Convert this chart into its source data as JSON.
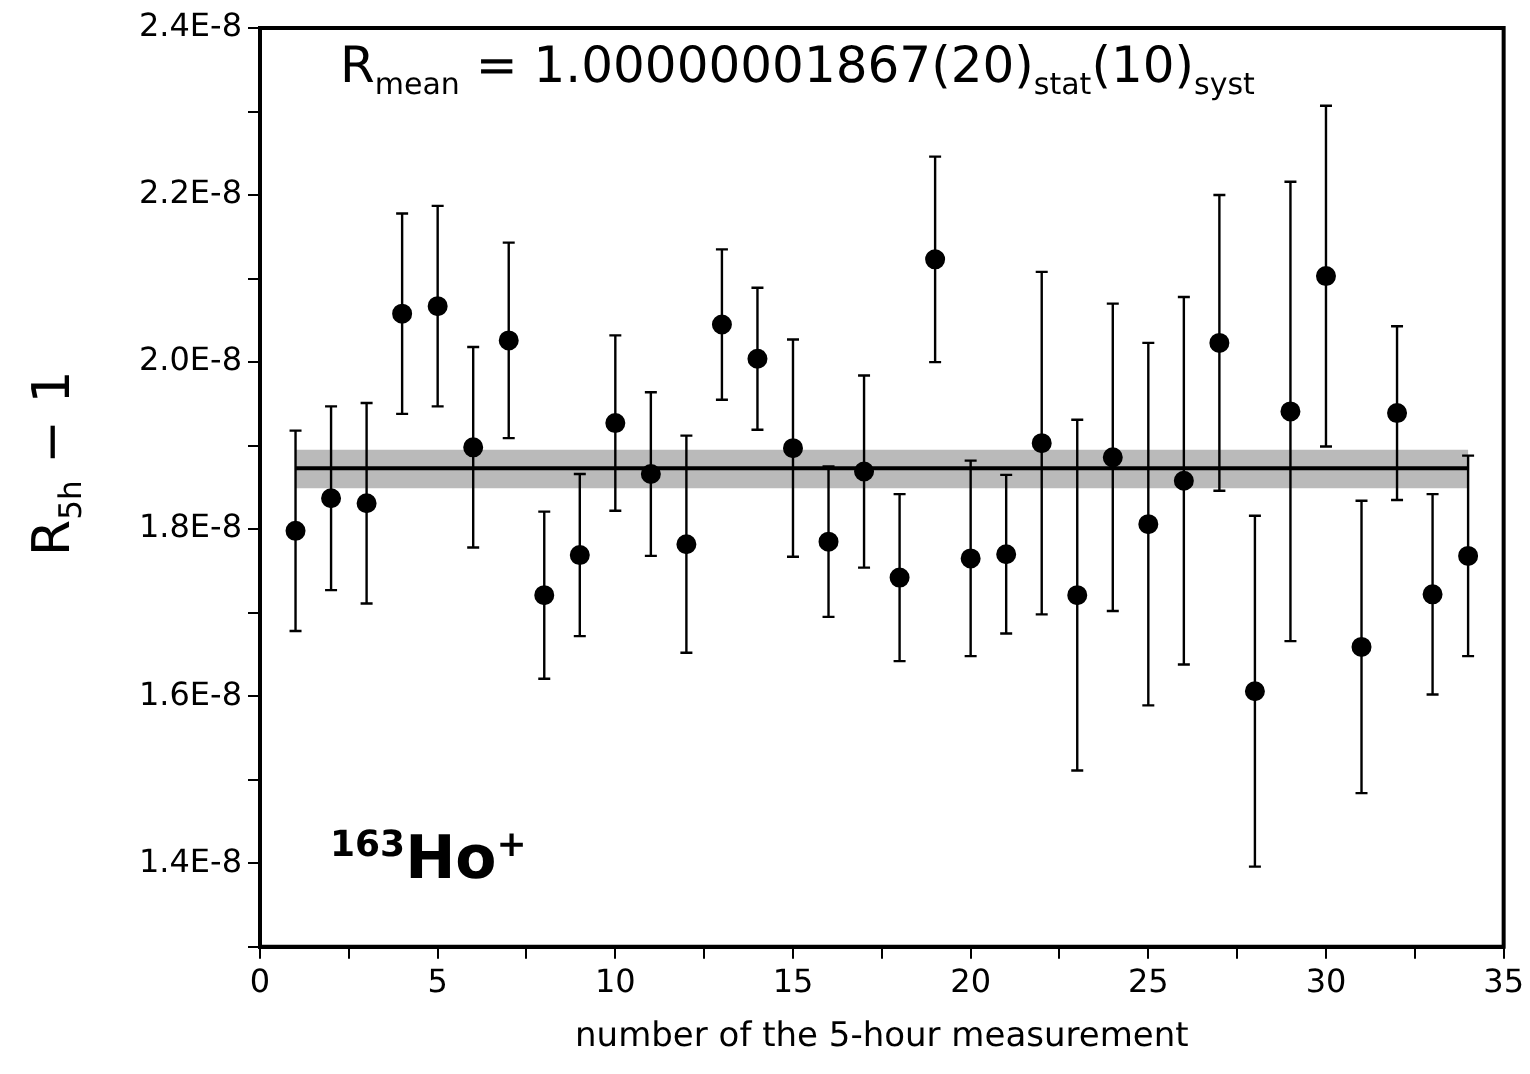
{
  "chart_data": {
    "type": "scatter",
    "xlabel": "number of the 5-hour measurement",
    "ylabel": "R$_{5h}$ − 1",
    "annotations": [
      "R$_{mean}$ = 1.00000001867(20)$_{stat}$(10)$_{syst}$",
      "$^{163}$Ho$^{+}$"
    ],
    "xlim": [
      0,
      35
    ],
    "xticks": [
      0,
      {
        "value": 2.5,
        "label": null
      },
      5,
      {
        "value": 7.5,
        "label": null
      },
      10,
      {
        "value": 12.5,
        "label": null
      },
      15,
      {
        "value": 17.5,
        "label": null
      },
      20,
      {
        "value": 22.5,
        "label": null
      },
      25,
      {
        "value": 27.5,
        "label": null
      },
      30,
      {
        "value": 32.5,
        "label": null
      },
      35
    ],
    "ylim": [
      1.3e-08,
      2.4e-08
    ],
    "yticks": [
      {
        "value": 1.3e-08,
        "label": null
      },
      {
        "value": 1.4e-08,
        "label": "1.4E-8"
      },
      {
        "value": 1.5e-08,
        "label": null
      },
      {
        "value": 1.6e-08,
        "label": "1.6E-8"
      },
      {
        "value": 1.7e-08,
        "label": null
      },
      {
        "value": 1.8e-08,
        "label": "1.8E-8"
      },
      {
        "value": 1.9e-08,
        "label": null
      },
      {
        "value": 2e-08,
        "label": "2.0E-8"
      },
      {
        "value": 2.1e-08,
        "label": null
      },
      {
        "value": 2.2e-08,
        "label": "2.2E-8"
      },
      {
        "value": 2.3e-08,
        "label": null
      },
      {
        "value": 2.4e-08,
        "label": "2.4E-8"
      }
    ],
    "grid": false,
    "legend": false,
    "series": [
      {
        "marker": "circle",
        "color": "#000000",
        "x": [
          1,
          2,
          3,
          4,
          5,
          6,
          7,
          8,
          9,
          10,
          11,
          12,
          13,
          14,
          15,
          16,
          17,
          18,
          19,
          20,
          21,
          22,
          23,
          24,
          25,
          26,
          27,
          28,
          29,
          30,
          31,
          32,
          33,
          34
        ],
        "values": [
          1.798e-08,
          1.837e-08,
          1.831e-08,
          2.058e-08,
          2.067e-08,
          1.898e-08,
          2.026e-08,
          1.721e-08,
          1.769e-08,
          1.927e-08,
          1.866e-08,
          1.782e-08,
          2.045e-08,
          2.004e-08,
          1.897e-08,
          1.785e-08,
          1.869e-08,
          1.742e-08,
          2.123e-08,
          1.765e-08,
          1.77e-08,
          1.903e-08,
          1.721e-08,
          1.886e-08,
          1.806e-08,
          1.858e-08,
          2.023e-08,
          1.606e-08,
          1.941e-08,
          2.103e-08,
          1.659e-08,
          1.939e-08,
          1.722e-08,
          1.768e-08
        ],
        "errors": [
          1.2e-09,
          1.1e-09,
          1.2e-09,
          1.2e-09,
          1.2e-09,
          1.2e-09,
          1.17e-09,
          1e-09,
          9.7e-10,
          1.05e-09,
          9.8e-10,
          1.3e-09,
          9e-10,
          8.5e-10,
          1.3e-09,
          9e-10,
          1.15e-09,
          1e-09,
          1.23e-09,
          1.17e-09,
          9.5e-10,
          2.05e-09,
          2.1e-09,
          1.84e-09,
          2.17e-09,
          2.2e-09,
          1.77e-09,
          2.1e-09,
          2.75e-09,
          2.04e-09,
          1.75e-09,
          1.04e-09,
          1.2e-09,
          1.2e-09
        ]
      },
      {
        "type": "line",
        "marker": "none",
        "color": "#000000",
        "x": [
          1,
          34
        ],
        "values": [
          1.873e-08,
          1.873e-08
        ],
        "lower": [
          1.849e-08,
          1.849e-08
        ],
        "upper": [
          1.895e-08,
          1.895e-08
        ]
      }
    ]
  }
}
